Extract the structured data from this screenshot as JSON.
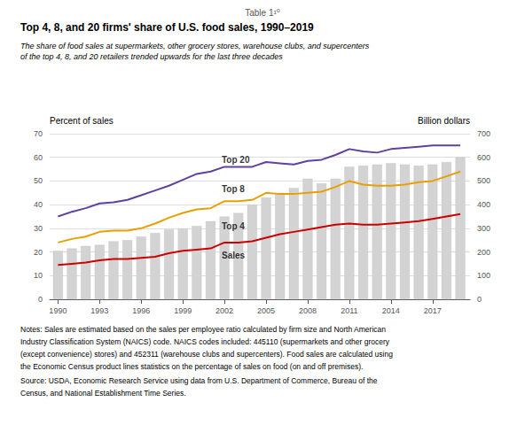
{
  "chart_data": {
    "type": "line",
    "supertitle": "Table 1¹⁰",
    "title": "Top 4, 8, and 20 firms' share of U.S. food sales, 1990–2019",
    "subtitle": [
      "The share of food sales at supermarkets, other grocery stores, warehouse clubs, and supercenters",
      "of the top 4, 8, and 20 retailers trended upwards for the last three decades"
    ],
    "ylabel": "Percent of sales",
    "y2label": "Billion dollars",
    "x": [
      1990,
      1991,
      1992,
      1993,
      1994,
      1995,
      1996,
      1997,
      1998,
      1999,
      2000,
      2001,
      2002,
      2003,
      2004,
      2005,
      2006,
      2007,
      2008,
      2009,
      2010,
      2011,
      2012,
      2013,
      2014,
      2015,
      2016,
      2017,
      2018,
      2019
    ],
    "series": [
      {
        "name": "Sales",
        "type": "bar",
        "axis": "y2",
        "color": "#d3d3d3",
        "values": [
          205,
          215,
          225,
          230,
          245,
          250,
          265,
          280,
          295,
          300,
          310,
          330,
          350,
          365,
          400,
          430,
          450,
          470,
          510,
          490,
          510,
          560,
          565,
          570,
          575,
          570,
          565,
          570,
          580,
          600
        ]
      },
      {
        "name": "Top 20",
        "type": "line",
        "color": "#6040a0",
        "values": [
          35.0,
          37.0,
          38.5,
          40.5,
          41.0,
          42.0,
          44.0,
          46.0,
          48.0,
          50.5,
          53.0,
          54.0,
          56.0,
          56.0,
          56.0,
          58.0,
          57.5,
          57.0,
          58.5,
          59.0,
          61.0,
          63.5,
          62.5,
          62.0,
          63.5,
          64.0,
          64.5,
          65.0,
          65.0,
          65.0
        ]
      },
      {
        "name": "Top 8",
        "type": "line",
        "color": "#e8a000",
        "values": [
          24.0,
          25.5,
          26.5,
          28.5,
          29.0,
          29.0,
          30.0,
          32.0,
          34.5,
          36.5,
          38.0,
          38.5,
          41.5,
          41.5,
          42.0,
          45.0,
          44.5,
          44.5,
          45.0,
          45.5,
          47.5,
          50.0,
          48.5,
          48.0,
          48.0,
          48.5,
          49.5,
          50.0,
          52.0,
          54.0
        ]
      },
      {
        "name": "Top 4",
        "type": "line",
        "color": "#cc0000",
        "values": [
          14.5,
          15.0,
          15.5,
          16.5,
          17.0,
          17.0,
          17.5,
          18.0,
          19.5,
          20.5,
          21.0,
          21.5,
          24.0,
          24.0,
          24.5,
          26.0,
          27.5,
          28.5,
          29.5,
          30.5,
          31.5,
          32.0,
          31.5,
          31.5,
          32.0,
          32.5,
          33.0,
          34.0,
          35.0,
          36.0
        ]
      }
    ],
    "xlim": [
      1989.4,
      2019.7
    ],
    "xticks": [
      1990,
      1993,
      1996,
      1999,
      2002,
      2005,
      2008,
      2011,
      2014,
      2017
    ],
    "ylim": [
      0,
      70
    ],
    "yticks": [
      0,
      10,
      20,
      30,
      40,
      50,
      60,
      70
    ],
    "y2lim": [
      0,
      700
    ],
    "y2ticks": [
      0,
      100,
      200,
      300,
      400,
      500,
      600,
      700
    ],
    "grid": true,
    "annotations": [
      {
        "text": "Top 20",
        "x": 2001.8,
        "y": 59.0
      },
      {
        "text": "Top 8",
        "x": 2001.8,
        "y": 46.5
      },
      {
        "text": "Top 4",
        "x": 2001.8,
        "y": 31.0
      },
      {
        "text": "Sales",
        "x": 2001.8,
        "y": 18.5
      }
    ],
    "notes": [
      "Notes: Sales are estimated based on the sales per employee ratio calculated by firm size and North American",
      "Industry Classification System (NAICS) code. NAICS codes included: 445110 (supermarkets and other grocery",
      "(except convenience) stores) and 452311 (warehouse clubs and supercenters). Food sales are calculated using",
      "the Economic Census product lines statistics on the percentage of sales on food (on and off premises)."
    ],
    "source": [
      "Source: USDA, Economic Research Service using data from U.S. Department of Commerce, Bureau of the",
      "Census, and National Establishment Time Series."
    ]
  }
}
